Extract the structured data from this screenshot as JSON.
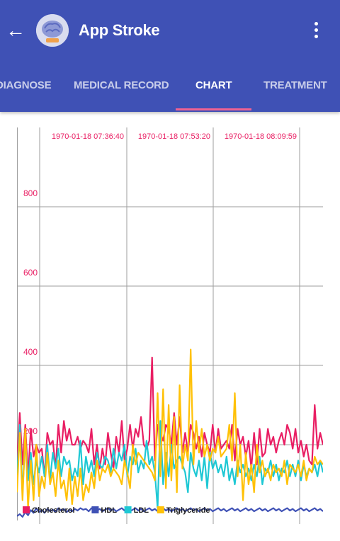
{
  "app_bar": {
    "back_icon": "arrow-back-icon",
    "logo_icon": "brain-logo-icon",
    "title": "App Stroke",
    "menu_icon": "more-vert-icon"
  },
  "tabs": [
    {
      "label": "DIAGNOSE",
      "active": false
    },
    {
      "label": "MEDICAL RECORD",
      "active": false
    },
    {
      "label": "CHART",
      "active": true
    },
    {
      "label": "TREATMENT",
      "active": false
    }
  ],
  "colors": {
    "primary": "#3f51b5",
    "tab_indicator": "#f06292",
    "cholesterol": "#e91e63",
    "hdl": "#3f51b5",
    "ldl": "#1ec8d4",
    "triglyceride": "#ffc107",
    "axis_label": "#e91e63"
  },
  "chart_data": {
    "type": "line",
    "title": "",
    "xlabel": "",
    "ylabel": "",
    "ylim": [
      0,
      880
    ],
    "y_ticks": [
      200,
      400,
      600,
      800
    ],
    "x_tick_labels": [
      "1970-01-18 07:36:40",
      "1970-01-18 07:53:20",
      "1970-01-18 08:09:59"
    ],
    "grid": true,
    "legend_position": "bottom-left",
    "series": [
      {
        "name": "Cholesterol",
        "color": "#e91e63",
        "values": [
          160,
          280,
          150,
          250,
          120,
          240,
          170,
          200,
          180,
          190,
          120,
          230,
          200,
          210,
          140,
          250,
          180,
          260,
          210,
          240,
          200,
          200,
          220,
          190,
          210,
          200,
          180,
          240,
          150,
          200,
          140,
          190,
          150,
          230,
          180,
          140,
          220,
          180,
          260,
          160,
          190,
          250,
          190,
          240,
          220,
          270,
          200,
          190,
          210,
          420,
          160,
          250,
          230,
          210,
          250,
          240,
          200,
          280,
          200,
          270,
          180,
          230,
          180,
          250,
          230,
          190,
          220,
          170,
          230,
          200,
          180,
          250,
          180,
          240,
          190,
          200,
          210,
          190,
          250,
          160,
          240,
          200,
          220,
          170,
          210,
          140,
          230,
          150,
          240,
          170,
          180,
          240,
          200,
          220,
          180,
          210,
          230,
          200,
          250,
          230,
          190,
          240,
          180,
          210,
          170,
          200,
          160,
          150,
          300,
          190,
          230,
          200
        ]
      },
      {
        "name": "HDL",
        "color": "#3f51b5",
        "values": [
          20,
          25,
          18,
          30,
          22,
          35,
          28,
          40,
          30,
          35,
          28,
          38,
          32,
          36,
          30,
          40,
          34,
          38,
          30,
          36,
          32,
          38,
          34,
          40,
          36,
          38,
          32,
          40,
          36,
          34,
          38,
          32,
          36,
          40,
          34,
          38,
          32,
          36,
          40,
          34,
          38,
          32,
          36,
          40,
          34,
          38,
          32,
          36,
          40,
          34,
          38,
          32,
          36,
          40,
          34,
          38,
          32,
          36,
          40,
          34,
          38,
          32,
          36,
          40,
          34,
          38,
          32,
          36,
          40,
          34,
          38,
          32,
          36,
          40,
          34,
          38,
          32,
          36,
          40,
          34,
          38,
          32,
          36,
          40,
          34,
          38,
          32,
          36,
          40,
          34,
          38,
          32,
          36,
          40,
          34,
          38,
          32,
          36,
          40,
          34,
          38,
          32,
          36,
          40,
          34,
          38,
          32,
          36,
          40,
          34,
          38,
          32
        ]
      },
      {
        "name": "LDL",
        "color": "#1ec8d4",
        "values": [
          120,
          250,
          80,
          210,
          110,
          180,
          100,
          160,
          130,
          170,
          120,
          200,
          110,
          180,
          140,
          190,
          120,
          170,
          150,
          160,
          110,
          140,
          120,
          210,
          100,
          170,
          130,
          160,
          120,
          180,
          150,
          140,
          170,
          160,
          130,
          190,
          140,
          180,
          160,
          200,
          120,
          170,
          150,
          190,
          130,
          160,
          140,
          210,
          150,
          170,
          130,
          40,
          260,
          100,
          180,
          120,
          200,
          140,
          160,
          170,
          150,
          130,
          80,
          180,
          140,
          120,
          160,
          110,
          170,
          90,
          180,
          140,
          160,
          130,
          150,
          120,
          170,
          110,
          140,
          100,
          160,
          130,
          150,
          120,
          140,
          110,
          150,
          120,
          170,
          100,
          140,
          130,
          160,
          120,
          150,
          110,
          140,
          130,
          160,
          120,
          150,
          120,
          160,
          110,
          150,
          120,
          140,
          130,
          150,
          120,
          160,
          130
        ]
      },
      {
        "name": "Triglyceride",
        "color": "#ffc107",
        "values": [
          80,
          230,
          60,
          240,
          40,
          160,
          60,
          200,
          70,
          120,
          90,
          180,
          100,
          130,
          70,
          160,
          90,
          110,
          60,
          140,
          50,
          120,
          70,
          140,
          60,
          100,
          80,
          130,
          90,
          160,
          110,
          140,
          130,
          150,
          120,
          140,
          130,
          120,
          100,
          160,
          130,
          90,
          200,
          150,
          180,
          170,
          160,
          150,
          140,
          130,
          110,
          330,
          120,
          340,
          90,
          300,
          110,
          270,
          80,
          350,
          140,
          200,
          160,
          440,
          150,
          260,
          180,
          240,
          170,
          200,
          160,
          190,
          180,
          220,
          170,
          180,
          190,
          250,
          160,
          330,
          120,
          200,
          60,
          180,
          100,
          150,
          80,
          200,
          130,
          160,
          120,
          140,
          110,
          150,
          130,
          140,
          120,
          160,
          100,
          150,
          140,
          130,
          150,
          120,
          160,
          110,
          140,
          130,
          170,
          150,
          160,
          150
        ]
      }
    ]
  }
}
